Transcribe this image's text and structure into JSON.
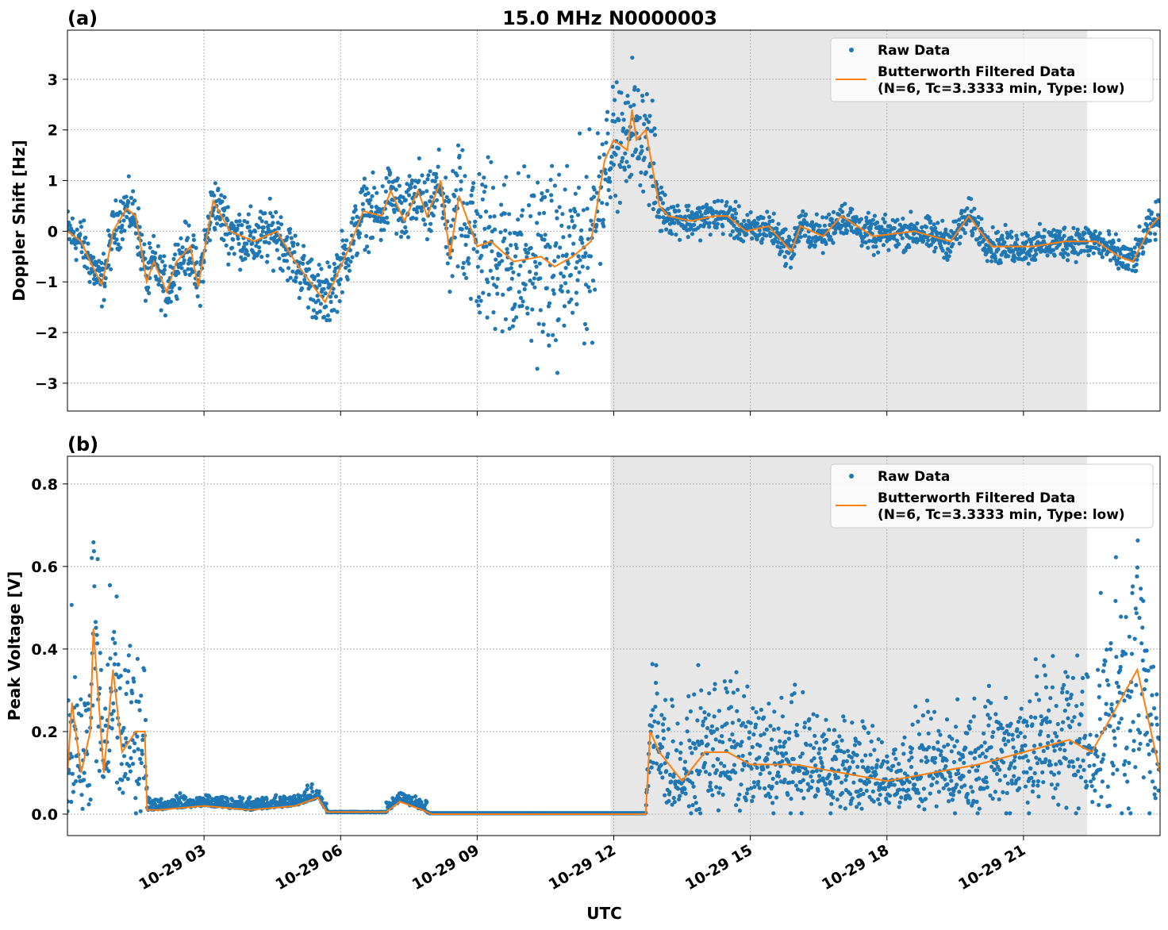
{
  "chart_data": [
    {
      "type": "scatter",
      "panel_label": "(a)",
      "title": "15.0 MHz N0000003",
      "xlabel": "",
      "ylabel": "Doppler Shift [Hz]",
      "xlim_hours": [
        0,
        24
      ],
      "ylim": [
        -3.55,
        3.97
      ],
      "yticks": [
        -3,
        -2,
        -1,
        0,
        1,
        2,
        3
      ],
      "ytick_labels": [
        "−3",
        "−2",
        "−1",
        "0",
        "1",
        "2",
        "3"
      ],
      "grid": true,
      "legend_placement": "top-right",
      "shaded_region_hours": [
        11.93,
        22.4
      ],
      "series": [
        {
          "name": "Raw Data",
          "color": "#1f77b4",
          "kind": "scatter",
          "spread": [
            [
              0,
              0.35
            ],
            [
              8.3,
              0.5
            ],
            [
              8.6,
              1.2
            ],
            [
              11.7,
              1.4
            ],
            [
              11.8,
              0.8
            ],
            [
              12.9,
              0.8
            ],
            [
              13.1,
              0.25
            ],
            [
              24,
              0.25
            ]
          ]
        },
        {
          "name": "Butterworth Filtered Data",
          "name_line2": "(N=6, Tc=3.3333 min, Type: low)",
          "color": "#ff7f0e",
          "kind": "line",
          "x": [
            0,
            0.3,
            0.5,
            0.75,
            0.9,
            1.0,
            1.3,
            1.5,
            1.74,
            1.9,
            2.18,
            2.4,
            2.7,
            2.87,
            3.2,
            3.57,
            4.1,
            4.6,
            5.0,
            5.66,
            6.2,
            6.5,
            6.9,
            7.1,
            7.4,
            7.7,
            7.9,
            8.2,
            8.4,
            8.6,
            9.0,
            9.3,
            9.8,
            10.4,
            10.7,
            11.1,
            11.5,
            11.8,
            12.0,
            12.3,
            12.4,
            12.5,
            12.7,
            13.0,
            13.2,
            13.7,
            14.2,
            14.5,
            14.9,
            15.4,
            15.9,
            16.1,
            16.6,
            17.0,
            17.7,
            18.6,
            19.4,
            19.8,
            20.3,
            21.2,
            21.9,
            22.6,
            23.1,
            23.4,
            23.8,
            24
          ],
          "y": [
            0,
            -0.2,
            -0.6,
            -1.05,
            -0.5,
            0,
            0.45,
            0.3,
            -1.0,
            -0.6,
            -1.2,
            -0.6,
            -0.3,
            -1.1,
            0.6,
            0,
            -0.2,
            0,
            -0.6,
            -1.4,
            -0.3,
            0.4,
            0.3,
            0.8,
            0.2,
            0.8,
            0.3,
            1.0,
            -0.5,
            0.7,
            -0.3,
            -0.2,
            -0.6,
            -0.5,
            -0.7,
            -0.5,
            -0.2,
            1.4,
            1.8,
            1.6,
            2.4,
            1.8,
            2.0,
            0.5,
            0.3,
            0.2,
            0.3,
            0.3,
            0.0,
            0.1,
            -0.4,
            0.1,
            -0.1,
            0.3,
            -0.1,
            0.0,
            -0.2,
            0.3,
            -0.3,
            -0.3,
            -0.2,
            -0.2,
            -0.5,
            -0.6,
            0.1,
            0.3
          ]
        }
      ]
    },
    {
      "type": "scatter",
      "panel_label": "(b)",
      "title": "",
      "xlabel": "UTC",
      "ylabel": "Peak Voltage [V]",
      "xlim_hours": [
        0,
        24
      ],
      "ylim": [
        -0.052,
        0.867
      ],
      "yticks": [
        0,
        0.2,
        0.4,
        0.6,
        0.8
      ],
      "ytick_labels": [
        "0.0",
        "0.2",
        "0.4",
        "0.6",
        "0.8"
      ],
      "xticks_hours": [
        3,
        6,
        9,
        12,
        15,
        18,
        21
      ],
      "xtick_labels": [
        "10-29 03",
        "10-29 06",
        "10-29 09",
        "10-29 12",
        "10-29 15",
        "10-29 18",
        "10-29 21"
      ],
      "grid": true,
      "legend_placement": "top-right",
      "shaded_region_hours": [
        11.93,
        22.4
      ],
      "series": [
        {
          "name": "Raw Data",
          "color": "#1f77b4",
          "kind": "scatter",
          "spread": [
            [
              0,
              0.7
            ],
            [
              1.75,
              0.6
            ],
            [
              1.8,
              0.1
            ],
            [
              12.7,
              0.1
            ],
            [
              12.8,
              0.7
            ],
            [
              24,
              0.7
            ]
          ]
        },
        {
          "name": "Butterworth Filtered Data",
          "name_line2": "(N=6, Tc=3.3333 min, Type: low)",
          "color": "#ff7f0e",
          "kind": "line",
          "x": [
            0,
            0.1,
            0.3,
            0.5,
            0.57,
            0.8,
            1.0,
            1.2,
            1.5,
            1.7,
            1.75,
            2,
            3,
            4,
            5,
            5.5,
            5.7,
            7,
            7.3,
            7.8,
            8,
            12.7,
            12.8,
            13,
            13.5,
            14,
            14.5,
            15,
            16,
            17,
            18,
            19,
            20,
            21,
            22,
            22.5,
            23,
            23.5,
            24
          ],
          "y": [
            0.1,
            0.27,
            0.1,
            0.2,
            0.45,
            0.1,
            0.35,
            0.15,
            0.2,
            0.2,
            0.01,
            0.01,
            0.02,
            0.01,
            0.02,
            0.04,
            0.005,
            0.005,
            0.03,
            0.01,
            0,
            0,
            0.2,
            0.15,
            0.08,
            0.15,
            0.15,
            0.12,
            0.12,
            0.1,
            0.08,
            0.1,
            0.12,
            0.15,
            0.18,
            0.15,
            0.25,
            0.35,
            0.1
          ]
        }
      ]
    }
  ]
}
